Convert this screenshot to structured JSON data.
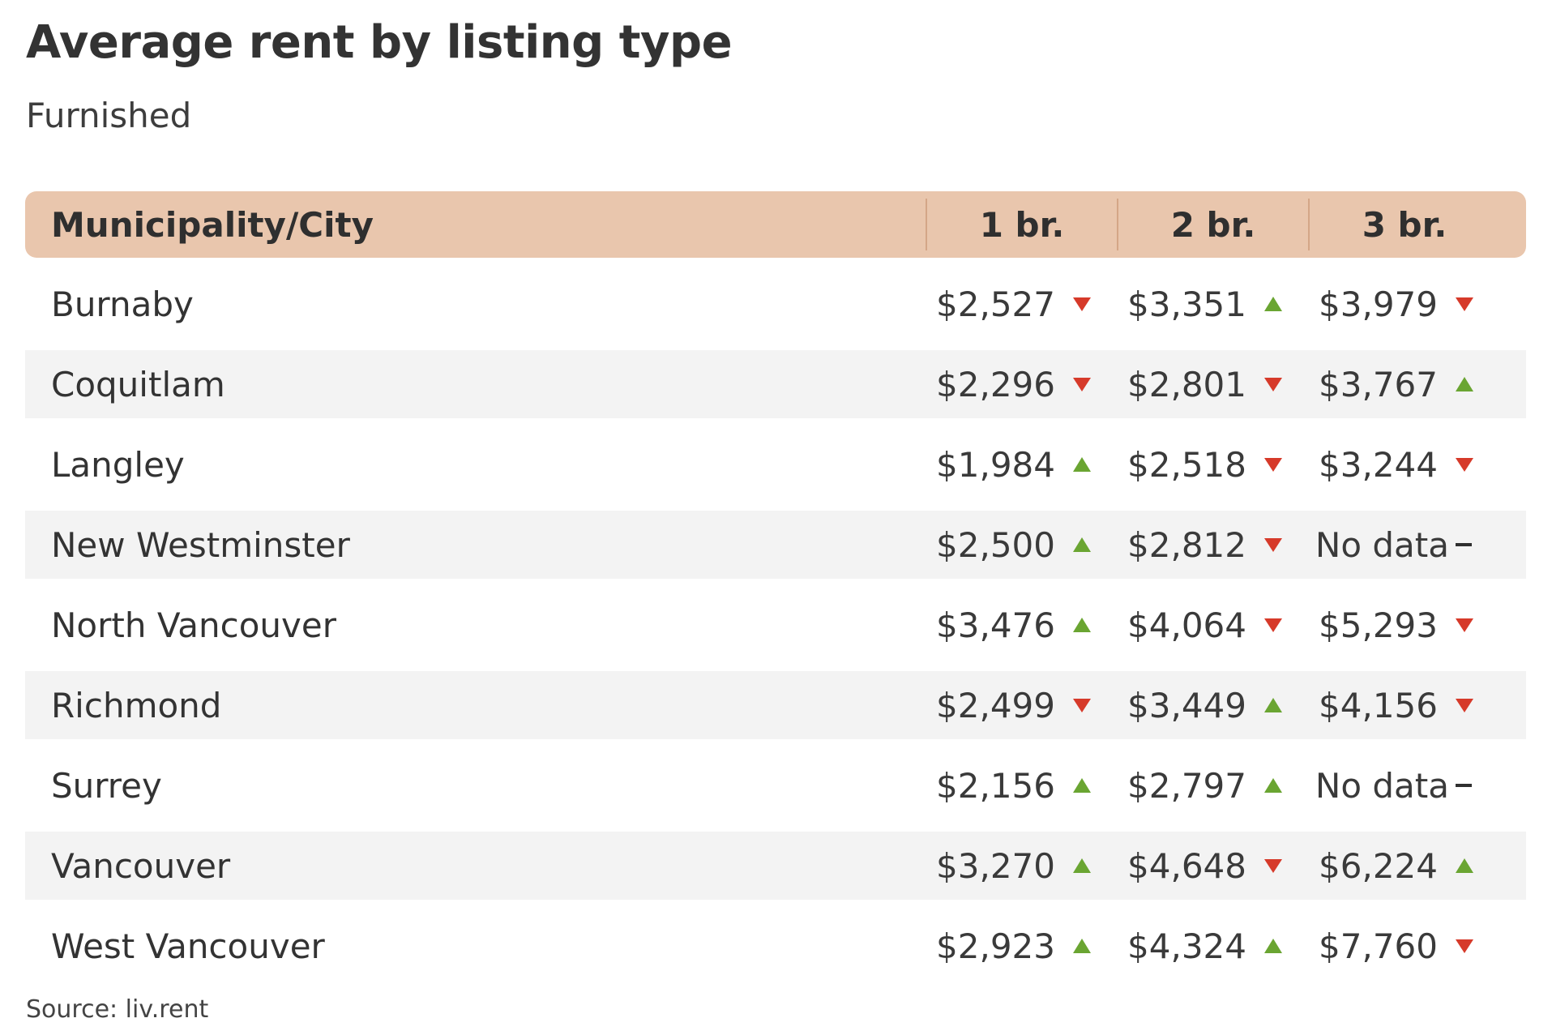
{
  "title": "Average rent by listing type",
  "subtitle": "Furnished",
  "source": "Source: liv.rent",
  "colors": {
    "header_bg": "#e9c6ad",
    "row_shaded": "#f3f3f3",
    "up": "#6aa532",
    "down": "#d63a2a",
    "flat": "#2f2f2f"
  },
  "chart_data": {
    "type": "table",
    "title": "Average rent by listing type",
    "subtitle": "Furnished",
    "columns": [
      "Municipality/City",
      "1 br.",
      "2 br.",
      "3 br."
    ],
    "rows": [
      {
        "city": "Burnaby",
        "values": [
          "$2,527",
          "$3,351",
          "$3,979"
        ],
        "trends": [
          "down",
          "up",
          "down"
        ]
      },
      {
        "city": "Coquitlam",
        "values": [
          "$2,296",
          "$2,801",
          "$3,767"
        ],
        "trends": [
          "down",
          "down",
          "up"
        ]
      },
      {
        "city": "Langley",
        "values": [
          "$1,984",
          "$2,518",
          "$3,244"
        ],
        "trends": [
          "up",
          "down",
          "down"
        ]
      },
      {
        "city": "New Westminster",
        "values": [
          "$2,500",
          "$2,812",
          "No data"
        ],
        "trends": [
          "up",
          "down",
          "flat"
        ]
      },
      {
        "city": "North Vancouver",
        "values": [
          "$3,476",
          "$4,064",
          "$5,293"
        ],
        "trends": [
          "up",
          "down",
          "down"
        ]
      },
      {
        "city": "Richmond",
        "values": [
          "$2,499",
          "$3,449",
          "$4,156"
        ],
        "trends": [
          "down",
          "up",
          "down"
        ]
      },
      {
        "city": "Surrey",
        "values": [
          "$2,156",
          "$2,797",
          "No data"
        ],
        "trends": [
          "up",
          "up",
          "flat"
        ]
      },
      {
        "city": "Vancouver",
        "values": [
          "$3,270",
          "$4,648",
          "$6,224"
        ],
        "trends": [
          "up",
          "down",
          "up"
        ]
      },
      {
        "city": "West Vancouver",
        "values": [
          "$2,923",
          "$4,324",
          "$7,760"
        ],
        "trends": [
          "up",
          "up",
          "down"
        ]
      }
    ],
    "source": "Source: liv.rent"
  }
}
